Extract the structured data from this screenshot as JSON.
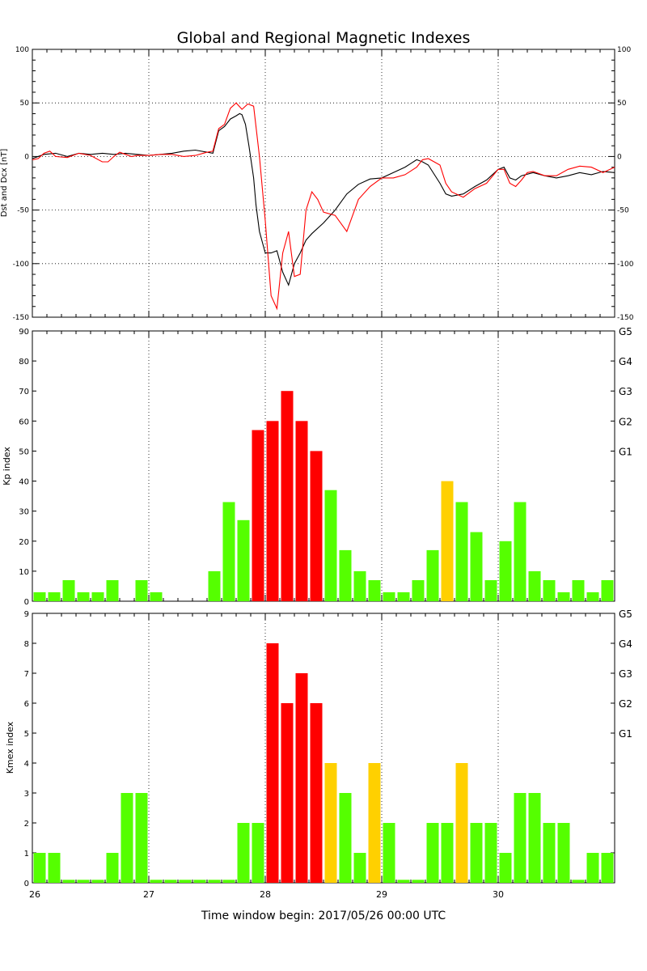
{
  "title": "Global and Regional Magnetic Indexes",
  "footer": "Time window begin: 2017/05/26 00:00 UTC",
  "colors": {
    "green": "#55ff00",
    "yellow": "#ffd000",
    "red": "#ff0000",
    "dst_line": "#000000",
    "dcx_line": "#ff0000"
  },
  "chart_data": [
    {
      "type": "line",
      "ylabel": "Dst and Dcx [nT]",
      "ylim": [
        -150,
        100
      ],
      "y_ticks": [
        "100",
        "50",
        "0",
        "-50",
        "-100",
        "-150"
      ],
      "y_tick_values": [
        100,
        50,
        0,
        -50,
        -100,
        -150
      ],
      "x_range_days": [
        26,
        31
      ],
      "grid": true,
      "series": [
        {
          "color": "black",
          "x": [
            26.0,
            26.1,
            26.2,
            26.3,
            26.4,
            26.5,
            26.6,
            26.7,
            26.8,
            26.9,
            27.0,
            27.1,
            27.2,
            27.3,
            27.4,
            27.5,
            27.55,
            27.6,
            27.65,
            27.7,
            27.75,
            27.78,
            27.8,
            27.83,
            27.86,
            27.9,
            27.92,
            27.95,
            28.0,
            28.05,
            28.1,
            28.15,
            28.2,
            28.25,
            28.3,
            28.35,
            28.4,
            28.5,
            28.6,
            28.7,
            28.8,
            28.9,
            29.0,
            29.1,
            29.2,
            29.3,
            29.35,
            29.4,
            29.5,
            29.55,
            29.6,
            29.7,
            29.8,
            29.9,
            30.0,
            30.05,
            30.1,
            30.15,
            30.2,
            30.3,
            30.4,
            30.5,
            30.6,
            30.7,
            30.8,
            30.9,
            31.0
          ],
          "y": [
            -2,
            2,
            3,
            0,
            3,
            2,
            3,
            2,
            3,
            2,
            1,
            2,
            3,
            5,
            6,
            4,
            3,
            24,
            28,
            35,
            38,
            40,
            39,
            30,
            10,
            -20,
            -45,
            -70,
            -90,
            -90,
            -88,
            -108,
            -120,
            -100,
            -90,
            -78,
            -72,
            -62,
            -50,
            -35,
            -26,
            -21,
            -20,
            -15,
            -10,
            -3,
            -5,
            -8,
            -25,
            -35,
            -37,
            -35,
            -28,
            -22,
            -12,
            -10,
            -20,
            -22,
            -18,
            -15,
            -18,
            -20,
            -18,
            -15,
            -17,
            -14,
            -15
          ]
        },
        {
          "color": "red",
          "x": [
            26.0,
            26.05,
            26.1,
            26.15,
            26.2,
            26.3,
            26.4,
            26.5,
            26.6,
            26.65,
            26.7,
            26.75,
            26.8,
            26.85,
            26.9,
            27.0,
            27.1,
            27.2,
            27.3,
            27.4,
            27.5,
            27.55,
            27.6,
            27.65,
            27.7,
            27.75,
            27.8,
            27.85,
            27.9,
            27.95,
            28.0,
            28.05,
            28.1,
            28.15,
            28.2,
            28.25,
            28.3,
            28.35,
            28.4,
            28.45,
            28.5,
            28.6,
            28.7,
            28.8,
            28.9,
            29.0,
            29.1,
            29.2,
            29.3,
            29.35,
            29.4,
            29.5,
            29.55,
            29.6,
            29.7,
            29.8,
            29.9,
            30.0,
            30.05,
            30.1,
            30.15,
            30.2,
            30.25,
            30.3,
            30.4,
            30.5,
            30.6,
            30.7,
            30.8,
            30.9,
            31.0
          ],
          "y": [
            -3,
            -2,
            3,
            5,
            0,
            -1,
            3,
            1,
            -5,
            -5,
            0,
            4,
            2,
            0,
            1,
            1,
            2,
            2,
            0,
            1,
            4,
            5,
            26,
            30,
            45,
            50,
            44,
            49,
            47,
            0,
            -60,
            -130,
            -142,
            -90,
            -70,
            -112,
            -110,
            -50,
            -33,
            -40,
            -52,
            -55,
            -70,
            -40,
            -28,
            -20,
            -20,
            -17,
            -10,
            -3,
            -2,
            -8,
            -25,
            -33,
            -38,
            -30,
            -25,
            -12,
            -12,
            -25,
            -28,
            -22,
            -15,
            -14,
            -18,
            -18,
            -12,
            -9,
            -10,
            -15,
            -10
          ]
        }
      ]
    },
    {
      "type": "bar",
      "ylabel": "Kp index",
      "ylim": [
        0,
        90
      ],
      "y_ticks": [
        "90",
        "80",
        "70",
        "60",
        "50",
        "40",
        "30",
        "20",
        "10",
        "0"
      ],
      "y_tick_values": [
        90,
        80,
        70,
        60,
        50,
        40,
        30,
        20,
        10,
        0
      ],
      "right_labels": [
        "G5",
        "G4",
        "G3",
        "G2",
        "G1"
      ],
      "right_label_values": [
        90,
        80,
        70,
        60,
        50
      ],
      "bin_hours": 3,
      "start_day": 26,
      "values": [
        3,
        3,
        7,
        3,
        3,
        7,
        0,
        7,
        3,
        0,
        0,
        0,
        10,
        33,
        27,
        57,
        60,
        70,
        60,
        50,
        37,
        17,
        10,
        7,
        3,
        3,
        7,
        17,
        40,
        33,
        23,
        7,
        20,
        33,
        10,
        7,
        3,
        7,
        3,
        7
      ],
      "thresholds": {
        "yellow_min": 40,
        "red_min": 50
      }
    },
    {
      "type": "bar",
      "ylabel": "Kmex index",
      "ylim": [
        0,
        9
      ],
      "y_ticks": [
        "9",
        "8",
        "7",
        "6",
        "5",
        "4",
        "3",
        "2",
        "1",
        "0"
      ],
      "y_tick_values": [
        9,
        8,
        7,
        6,
        5,
        4,
        3,
        2,
        1,
        0
      ],
      "right_labels": [
        "G5",
        "G4",
        "G3",
        "G2",
        "G1"
      ],
      "right_label_values": [
        9,
        8,
        7,
        6,
        5
      ],
      "x_ticks": [
        "26",
        "27",
        "28",
        "29",
        "30"
      ],
      "x_tick_values": [
        26,
        27,
        28,
        29,
        30
      ],
      "bin_hours": 3,
      "start_day": 26,
      "values": [
        1,
        1,
        0.1,
        0.1,
        0.1,
        1,
        3,
        3,
        0.1,
        0.1,
        0.1,
        0.1,
        0.1,
        0.1,
        2,
        2,
        8,
        6,
        7,
        6,
        4,
        3,
        1,
        4,
        2,
        0.1,
        0.1,
        2,
        2,
        4,
        2,
        2,
        1,
        3,
        3,
        2,
        2,
        0.1,
        1,
        1,
        0.1
      ],
      "thresholds": {
        "yellow_min": 4,
        "red_min": 5
      }
    }
  ]
}
